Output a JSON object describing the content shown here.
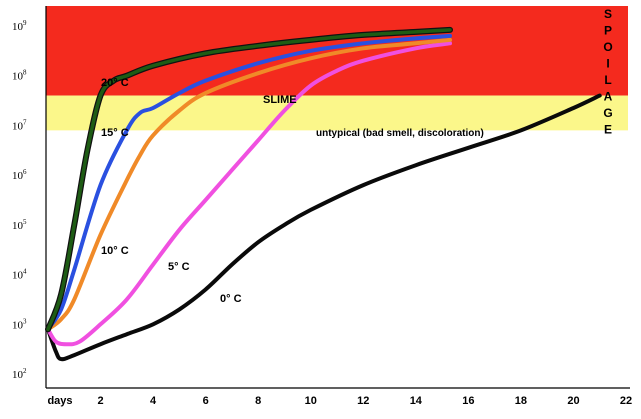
{
  "chart_data": {
    "type": "line",
    "xlabel": "days",
    "x_ticks": [
      2,
      4,
      6,
      8,
      10,
      12,
      14,
      16,
      18,
      20,
      22
    ],
    "y_ticks": [
      {
        "base": "10",
        "exp": "2",
        "value": 2
      },
      {
        "base": "10",
        "exp": "3",
        "value": 3
      },
      {
        "base": "10",
        "exp": "4",
        "value": 4
      },
      {
        "base": "10",
        "exp": "5",
        "value": 5
      },
      {
        "base": "10",
        "exp": "6",
        "value": 6
      },
      {
        "base": "10",
        "exp": "7",
        "value": 7
      },
      {
        "base": "10",
        "exp": "8",
        "value": 8
      },
      {
        "base": "10",
        "exp": "9",
        "value": 9
      }
    ],
    "xlim": [
      0,
      22
    ],
    "ylim_log10": [
      2,
      9.2
    ],
    "y_scale": "log",
    "bands": [
      {
        "label": "SLIME",
        "from_log10": 7.6,
        "to_log10": 9.2,
        "color": "#f42a1e"
      },
      {
        "label": "untypical (bad smell, discoloration)",
        "from_log10": 6.9,
        "to_log10": 7.6,
        "color": "#fbf78a"
      }
    ],
    "side_label": "SPOILAGE",
    "series": [
      {
        "name": "20° C",
        "color": "#1e5c14",
        "outline": "#111111",
        "points": [
          [
            0,
            2.9
          ],
          [
            0.5,
            3.6
          ],
          [
            1,
            5.0
          ],
          [
            1.5,
            6.5
          ],
          [
            2,
            7.6
          ],
          [
            2.5,
            7.9
          ],
          [
            3,
            8.0
          ],
          [
            4,
            8.2
          ],
          [
            6,
            8.45
          ],
          [
            8,
            8.6
          ],
          [
            10,
            8.72
          ],
          [
            12,
            8.82
          ],
          [
            14,
            8.88
          ],
          [
            15.3,
            8.92
          ]
        ]
      },
      {
        "name": "15° C",
        "color": "#2a50e0",
        "points": [
          [
            0,
            2.9
          ],
          [
            0.5,
            3.3
          ],
          [
            1,
            4.1
          ],
          [
            2,
            5.8
          ],
          [
            3,
            6.9
          ],
          [
            3.5,
            7.25
          ],
          [
            4,
            7.35
          ],
          [
            5,
            7.65
          ],
          [
            6,
            7.9
          ],
          [
            8,
            8.25
          ],
          [
            10,
            8.5
          ],
          [
            12,
            8.65
          ],
          [
            14,
            8.75
          ],
          [
            15.3,
            8.8
          ]
        ]
      },
      {
        "name": "10° C",
        "color": "#f08a28",
        "points": [
          [
            0,
            2.9
          ],
          [
            0.5,
            3.1
          ],
          [
            1,
            3.5
          ],
          [
            2,
            4.8
          ],
          [
            3,
            5.9
          ],
          [
            3.5,
            6.4
          ],
          [
            4,
            6.8
          ],
          [
            5,
            7.3
          ],
          [
            6,
            7.65
          ],
          [
            8,
            8.05
          ],
          [
            10,
            8.35
          ],
          [
            12,
            8.55
          ],
          [
            14,
            8.65
          ],
          [
            15.3,
            8.72
          ]
        ]
      },
      {
        "name": "5° C",
        "color": "#f050e0",
        "points": [
          [
            0,
            2.9
          ],
          [
            0.3,
            2.65
          ],
          [
            0.7,
            2.6
          ],
          [
            1.2,
            2.65
          ],
          [
            2,
            3.0
          ],
          [
            3,
            3.5
          ],
          [
            4,
            4.2
          ],
          [
            5,
            4.9
          ],
          [
            6,
            5.5
          ],
          [
            7,
            6.1
          ],
          [
            8,
            6.7
          ],
          [
            9,
            7.3
          ],
          [
            10,
            7.8
          ],
          [
            11,
            8.1
          ],
          [
            12,
            8.3
          ],
          [
            14,
            8.55
          ],
          [
            15.3,
            8.65
          ]
        ]
      },
      {
        "name": "0° C",
        "color": "#0a0a0a",
        "points": [
          [
            0,
            2.9
          ],
          [
            0.3,
            2.45
          ],
          [
            0.5,
            2.3
          ],
          [
            1,
            2.38
          ],
          [
            2,
            2.6
          ],
          [
            3,
            2.8
          ],
          [
            4,
            3.0
          ],
          [
            5,
            3.3
          ],
          [
            6,
            3.7
          ],
          [
            7,
            4.2
          ],
          [
            8,
            4.65
          ],
          [
            9,
            5.0
          ],
          [
            10,
            5.3
          ],
          [
            12,
            5.8
          ],
          [
            14,
            6.2
          ],
          [
            16,
            6.55
          ],
          [
            18,
            6.9
          ],
          [
            20,
            7.35
          ],
          [
            21,
            7.6
          ]
        ]
      }
    ]
  }
}
